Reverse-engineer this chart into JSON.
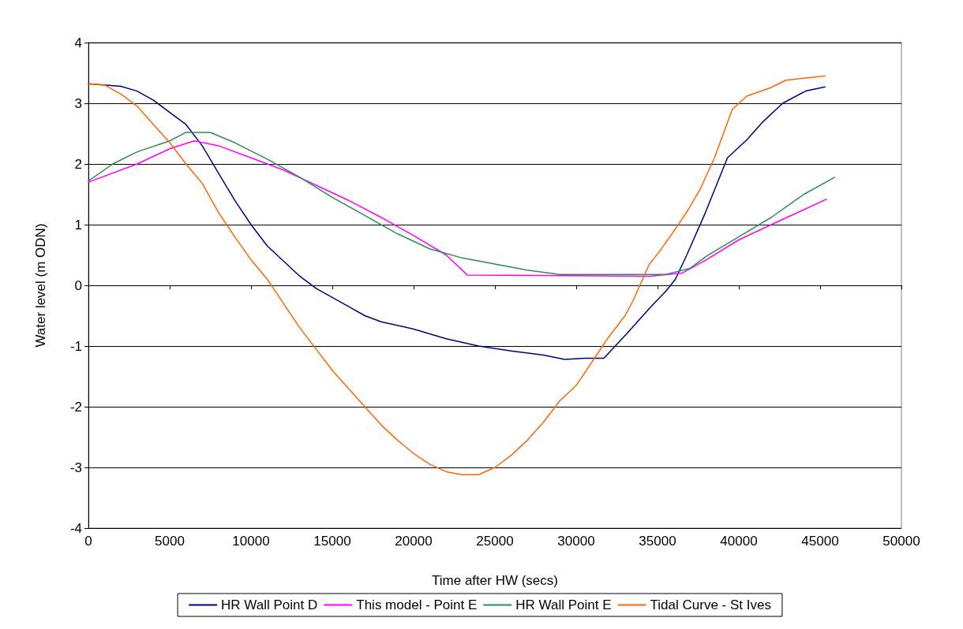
{
  "chart_data": {
    "type": "line",
    "xlabel": "Time after HW (secs)",
    "ylabel": "Water level (m ODN)",
    "xlim": [
      0,
      50000
    ],
    "xticks": [
      0,
      5000,
      10000,
      15000,
      20000,
      25000,
      30000,
      35000,
      40000,
      45000,
      50000
    ],
    "ylim": [
      -4,
      4
    ],
    "yticks": [
      -4,
      -3,
      -2,
      -1,
      0,
      1,
      2,
      3,
      4
    ],
    "grid": "y",
    "legend": "bottom",
    "marker": "none",
    "line_style": "solid",
    "series": [
      {
        "name": "HR Wall Point D",
        "color": "#000080",
        "x": [
          0,
          2000,
          3000,
          4000,
          5000,
          6000,
          7000,
          8000,
          9000,
          10000,
          11000,
          12000,
          13000,
          14000,
          15000,
          16000,
          17000,
          18000,
          20000,
          22000,
          24000,
          26000,
          28000,
          29300,
          30500,
          31700,
          33100,
          34600,
          35500,
          36100,
          36800,
          37900,
          39300,
          40500,
          41500,
          42700,
          44100,
          45300
        ],
        "values": [
          3.32,
          3.28,
          3.2,
          3.05,
          2.85,
          2.65,
          2.3,
          1.85,
          1.4,
          1.0,
          0.65,
          0.4,
          0.15,
          -0.05,
          -0.2,
          -0.35,
          -0.5,
          -0.6,
          -0.72,
          -0.88,
          -1.0,
          -1.08,
          -1.15,
          -1.22,
          -1.2,
          -1.2,
          -0.8,
          -0.35,
          -0.1,
          0.1,
          0.5,
          1.17,
          2.1,
          2.4,
          2.7,
          3.0,
          3.2,
          3.27
        ]
      },
      {
        "name": "This model - Point E",
        "color": "#ff00ff",
        "x": [
          0,
          3000,
          5000,
          6500,
          8000,
          10000,
          12000,
          14000,
          16000,
          18000,
          20000,
          22000,
          23300,
          34500,
          36500,
          38000,
          40000,
          42000,
          45400
        ],
        "values": [
          1.7,
          2.0,
          2.25,
          2.38,
          2.3,
          2.1,
          1.9,
          1.65,
          1.4,
          1.12,
          0.82,
          0.5,
          0.17,
          0.15,
          0.2,
          0.42,
          0.75,
          1.0,
          1.42
        ]
      },
      {
        "name": "HR Wall Point E",
        "color": "#2e8b57",
        "x": [
          0,
          1500,
          3000,
          5000,
          6000,
          7500,
          9000,
          11000,
          13000,
          15000,
          17000,
          19000,
          21000,
          23000,
          25000,
          27000,
          29000,
          35500,
          37000,
          38000,
          40000,
          42000,
          44000,
          45900
        ],
        "values": [
          1.72,
          2.0,
          2.2,
          2.38,
          2.52,
          2.52,
          2.35,
          2.08,
          1.78,
          1.45,
          1.15,
          0.85,
          0.6,
          0.45,
          0.35,
          0.25,
          0.18,
          0.18,
          0.28,
          0.48,
          0.8,
          1.12,
          1.5,
          1.78
        ]
      },
      {
        "name": "Tidal Curve - St Ives",
        "color": "#ff6600",
        "x": [
          0,
          1000,
          2000,
          3000,
          4000,
          5000,
          6000,
          7000,
          8000,
          9000,
          10000,
          11000,
          12000,
          13000,
          14000,
          15000,
          16000,
          17000,
          18000,
          19000,
          20000,
          21000,
          22000,
          23000,
          24000,
          25000,
          26000,
          27000,
          28000,
          29000,
          30000,
          31000,
          32000,
          33000,
          33500,
          34500,
          35100,
          35900,
          36900,
          37650,
          38500,
          39600,
          40500,
          41900,
          42900,
          45300
        ],
        "values": [
          3.32,
          3.3,
          3.15,
          2.95,
          2.65,
          2.35,
          2.0,
          1.68,
          1.2,
          0.8,
          0.42,
          0.1,
          -0.3,
          -0.7,
          -1.05,
          -1.4,
          -1.7,
          -2.0,
          -2.3,
          -2.55,
          -2.77,
          -2.95,
          -3.07,
          -3.12,
          -3.12,
          -3.0,
          -2.8,
          -2.55,
          -2.25,
          -1.9,
          -1.65,
          -1.25,
          -0.85,
          -0.5,
          -0.25,
          0.35,
          0.55,
          0.85,
          1.25,
          1.6,
          2.1,
          2.9,
          3.12,
          3.25,
          3.38,
          3.45
        ]
      }
    ]
  }
}
